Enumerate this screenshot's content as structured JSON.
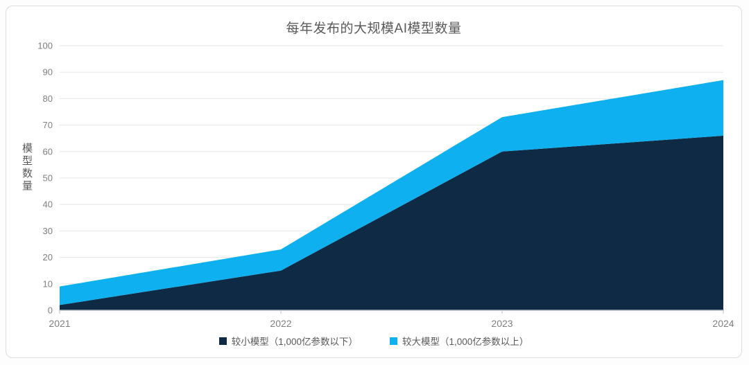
{
  "chart_data": {
    "type": "area",
    "stacked": true,
    "title": "每年发布的大规模AI模型数量",
    "ylabel": "模型数量",
    "xlabel": "",
    "categories": [
      "2021",
      "2022",
      "2023",
      "2024"
    ],
    "series": [
      {
        "name": "较小模型（1,000亿参数以下）",
        "color": "#0e2a44",
        "values": [
          2,
          15,
          60,
          66
        ]
      },
      {
        "name": "较大模型（1,000亿参数以上）",
        "color": "#0fb0f0",
        "values": [
          7,
          8,
          13,
          21
        ]
      }
    ],
    "stacked_totals": [
      9,
      23,
      73,
      87
    ],
    "ylim": [
      0,
      100
    ],
    "ytick_step": 10,
    "yticks": [
      0,
      10,
      20,
      30,
      40,
      50,
      60,
      70,
      80,
      90,
      100
    ],
    "grid": true,
    "legend_position": "bottom"
  },
  "colors": {
    "card_background": "#ffffff",
    "card_border": "#dcdcdc",
    "gridline": "#e6e6e6",
    "axis_line": "#b9bec6",
    "tick_label": "#7f7f7f",
    "title_text": "#595959",
    "legend_text": "#595959",
    "series_smaller": "#0e2a44",
    "series_larger": "#0fb0f0"
  }
}
